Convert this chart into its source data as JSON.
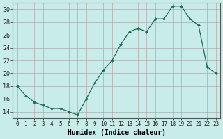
{
  "x": [
    0,
    1,
    2,
    3,
    4,
    5,
    6,
    7,
    8,
    9,
    10,
    11,
    12,
    13,
    14,
    15,
    16,
    17,
    18,
    19,
    20,
    21,
    22,
    23
  ],
  "y": [
    18,
    16.5,
    15.5,
    15,
    14.5,
    14.5,
    14,
    13.5,
    16,
    18.5,
    20.5,
    22,
    24.5,
    26.5,
    27,
    26.5,
    28.5,
    28.5,
    30.5,
    30.5,
    28.5,
    27.5,
    21,
    20
  ],
  "xlabel": "Humidex (Indice chaleur)",
  "ylim": [
    13,
    31
  ],
  "xlim": [
    -0.5,
    23.5
  ],
  "yticks": [
    14,
    16,
    18,
    20,
    22,
    24,
    26,
    28,
    30
  ],
  "xticks": [
    0,
    1,
    2,
    3,
    4,
    5,
    6,
    7,
    8,
    9,
    10,
    11,
    12,
    13,
    14,
    15,
    16,
    17,
    18,
    19,
    20,
    21,
    22,
    23
  ],
  "line_color": "#1a6b5a",
  "bg_color": "#c8ecea",
  "grid_color": "#b8a8a8",
  "xlabel_fontsize": 7,
  "tick_fontsize": 5.5,
  "ytick_fontsize": 6
}
